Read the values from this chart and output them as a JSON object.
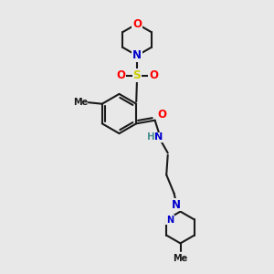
{
  "bg_color": "#e8e8e8",
  "line_color": "#1a1a1a",
  "lw": 1.5,
  "atom_colors": {
    "O": "#ff0000",
    "N": "#0000cc",
    "S": "#cccc00",
    "NH": "#4a9090",
    "C": "#1a1a1a"
  },
  "fs": 7.5,
  "figsize": [
    3.0,
    3.0
  ],
  "dpi": 100,
  "xlim": [
    0,
    10
  ],
  "ylim": [
    0,
    10
  ]
}
